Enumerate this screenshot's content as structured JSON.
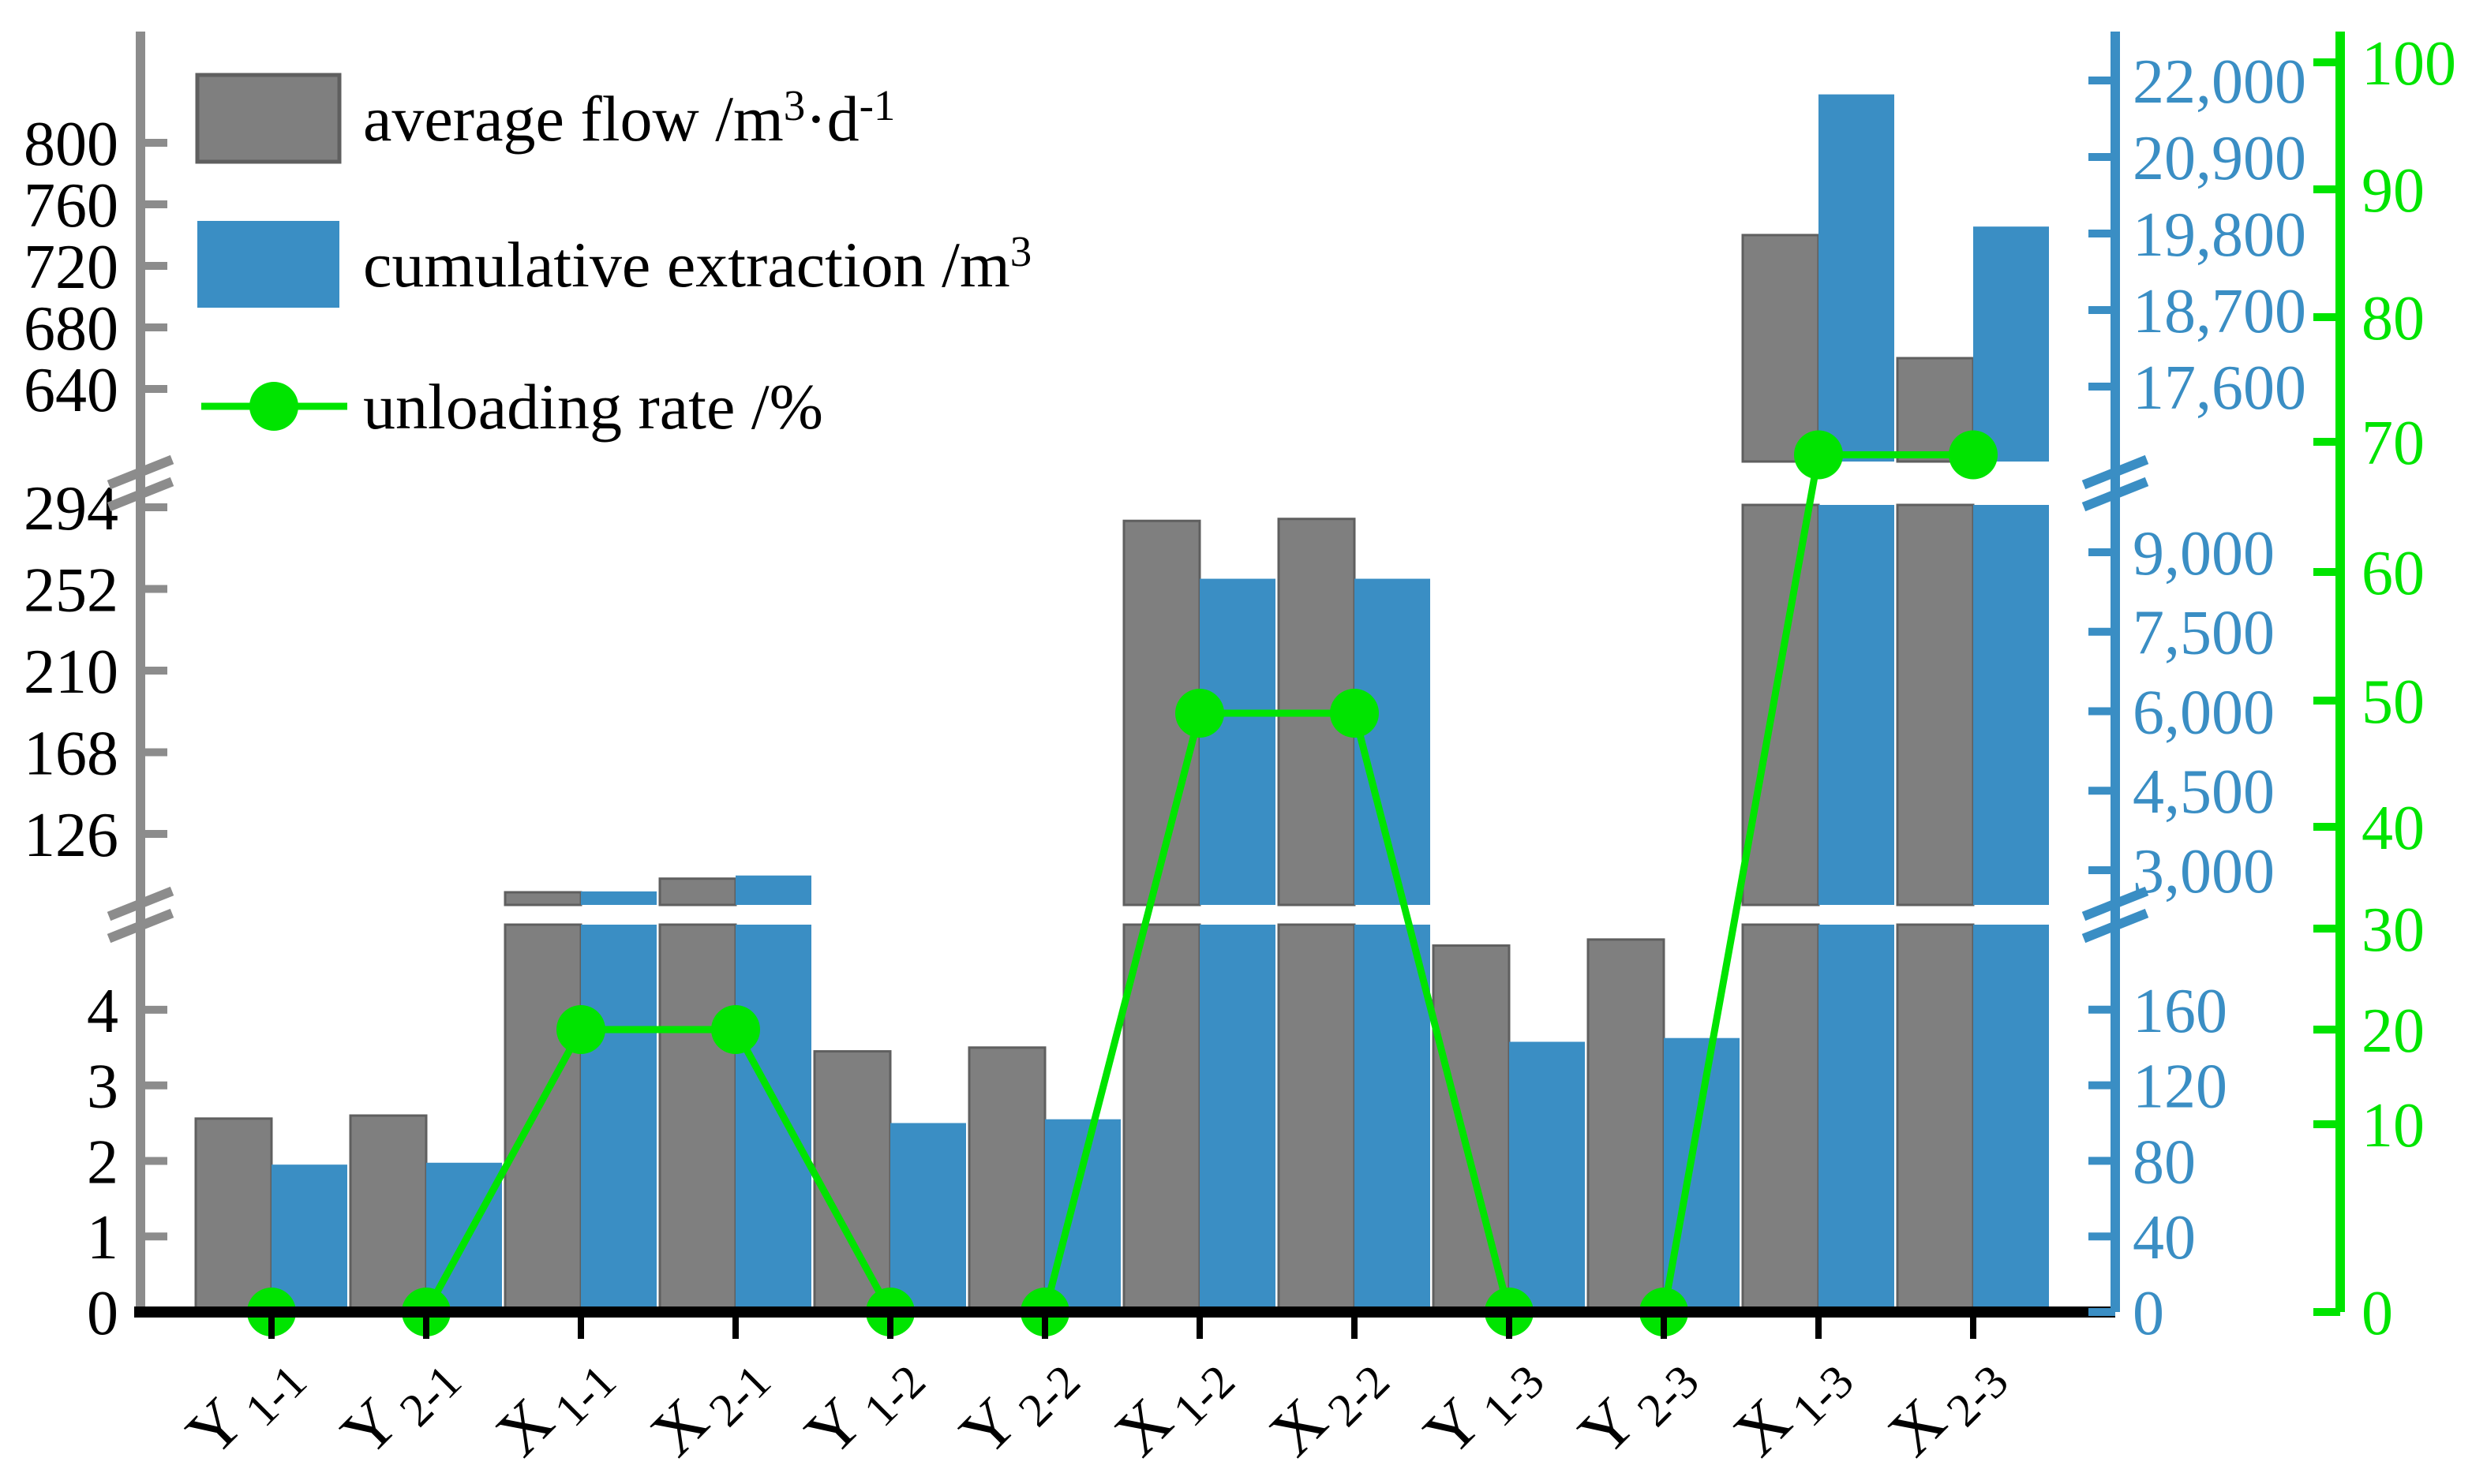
{
  "legend": {
    "items": [
      {
        "swatch": "gray-bar-swatch",
        "parts": [
          {
            "t": "average flow /m"
          },
          {
            "t": "3",
            "sup": true
          },
          {
            "t": "·d"
          },
          {
            "t": "-1",
            "sup": true
          }
        ]
      },
      {
        "swatch": "blue-bar-swatch",
        "parts": [
          {
            "t": "cumulative extraction /m"
          },
          {
            "t": "3",
            "sup": true
          }
        ]
      },
      {
        "swatch": "green-line-swatch",
        "parts": [
          {
            "t": "unloading rate /%"
          }
        ]
      }
    ]
  },
  "colors": {
    "gray_bar": "#7f7f7f",
    "gray_bar_edge": "#5f5f5f",
    "blue": "#3a8ec4",
    "green": "#00e400",
    "axis_gray": "#8c8c8c",
    "black": "#000000"
  },
  "chart_data": {
    "type": "bar+line",
    "title": "",
    "categories": [
      {
        "main": "Y",
        "sub": "1-1"
      },
      {
        "main": "Y",
        "sub": "2-1"
      },
      {
        "main": "X",
        "sub": "1-1"
      },
      {
        "main": "X",
        "sub": "2-1"
      },
      {
        "main": "Y",
        "sub": "1-2"
      },
      {
        "main": "Y",
        "sub": "2-2"
      },
      {
        "main": "X",
        "sub": "1-2"
      },
      {
        "main": "X",
        "sub": "2-2"
      },
      {
        "main": "Y",
        "sub": "1-3"
      },
      {
        "main": "Y",
        "sub": "2-3"
      },
      {
        "main": "X",
        "sub": "1-3"
      },
      {
        "main": "X",
        "sub": "2-3"
      }
    ],
    "series": [
      {
        "name": "average flow /m3·d-1",
        "type": "bar",
        "axis": "left",
        "values": [
          2.56,
          2.6,
          96,
          103,
          3.45,
          3.5,
          287,
          288,
          4.85,
          4.93,
          740,
          660
        ]
      },
      {
        "name": "cumulative extraction /m3",
        "type": "bar",
        "axis": "blue",
        "values": [
          78,
          79,
          2600,
          2900,
          100,
          102,
          8500,
          8500,
          143,
          145,
          21800,
          19900
        ]
      },
      {
        "name": "unloading rate /%",
        "type": "line",
        "axis": "green",
        "values": [
          0,
          0,
          20,
          20,
          0,
          0,
          49,
          49,
          0,
          0,
          69,
          69
        ]
      }
    ],
    "axes": {
      "left": {
        "sections": [
          {
            "ticks": [
              0,
              1,
              2,
              3,
              4
            ]
          },
          {
            "ticks": [
              126,
              168,
              210,
              252,
              294
            ]
          },
          {
            "ticks": [
              640,
              680,
              720,
              760,
              800
            ]
          }
        ],
        "broken": true
      },
      "blue": {
        "sections": [
          {
            "ticks": [
              0,
              40,
              80,
              120,
              160
            ]
          },
          {
            "ticks": [
              3000,
              4500,
              6000,
              7500,
              9000
            ]
          },
          {
            "ticks": [
              17600,
              18700,
              19800,
              20900,
              22000
            ]
          }
        ],
        "broken": true,
        "comma_format": true
      },
      "green": {
        "ticks": [
          0,
          10,
          20,
          30,
          40,
          50,
          60,
          70,
          80,
          90,
          100
        ],
        "broken": false
      }
    },
    "layout_hints": {
      "panels": [
        {
          "yTop": 1172,
          "yBot": 1663,
          "left": [
            0,
            5.127
          ],
          "blue": [
            0,
            205
          ]
        },
        {
          "yTop": 640,
          "yBot": 1147,
          "left": [
            89.5,
            295.2
          ],
          "blue": [
            2345,
            9893
          ]
        },
        {
          "yTop": 40,
          "yBot": 585,
          "left": [
            592.8,
            872.3
          ],
          "blue": [
            16523,
            22703
          ]
        }
      ],
      "green_anchors": [
        [
          0,
          1663
        ],
        [
          10,
          1425
        ],
        [
          20,
          1305
        ],
        [
          30,
          1177
        ],
        [
          40,
          1048
        ],
        [
          50,
          888
        ],
        [
          60,
          725
        ],
        [
          70,
          560
        ],
        [
          80,
          402
        ],
        [
          90,
          240
        ],
        [
          100,
          79
        ]
      ],
      "legend_position": "top-left",
      "grid": false
    }
  }
}
